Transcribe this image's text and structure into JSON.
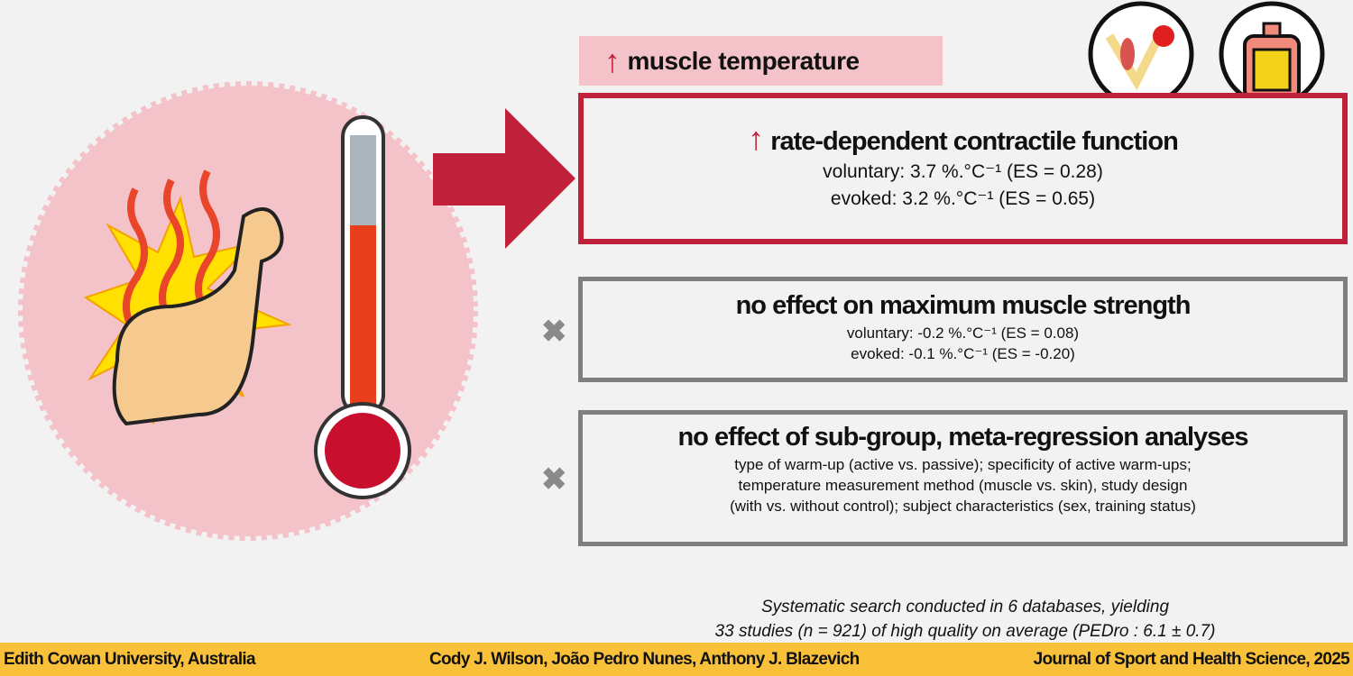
{
  "badge": {
    "arrow": "↑",
    "text": "muscle temperature"
  },
  "box1": {
    "arrow": "↑",
    "title": "rate-dependent contractile function",
    "lines": [
      "voluntary: 3.7 %.°C⁻¹ (ES = 0.28)",
      "evoked: 3.2 %.°C⁻¹ (ES = 0.65)"
    ]
  },
  "box2": {
    "title": "no effect on maximum muscle strength",
    "lines": [
      "voluntary:  -0.2 %.°C⁻¹ (ES = 0.08)",
      "evoked:  -0.1 %.°C⁻¹ (ES = -0.20)"
    ]
  },
  "box3": {
    "title": "no effect of sub-group, meta-regression analyses",
    "lines": [
      "type of warm-up (active vs. passive); specificity of active warm-ups;",
      "temperature measurement method (muscle vs. skin), study design",
      "(with vs. without control); subject characteristics (sex, training status)"
    ]
  },
  "note": [
    "Systematic  search conducted in 6 databases, yielding",
    "33 studies (n = 921) of high quality on average (PEDro : 6.1 ± 0.7)"
  ],
  "footer": {
    "left": "Edith Cowan University, Australia",
    "center": "Cody J. Wilson, João Pedro Nunes, Anthony J. Blazevich",
    "right": "Journal of Sport and Health Science, 2025"
  },
  "colors": {
    "red": "#c0203a",
    "pink": "#f4c3c9",
    "gray": "#7f7f7f",
    "footer": "#f9c13a"
  }
}
